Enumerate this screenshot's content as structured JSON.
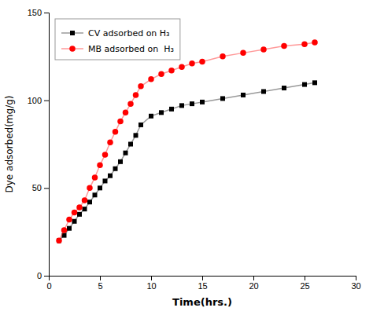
{
  "chart_data": {
    "type": "line",
    "x": [
      1,
      1.5,
      2,
      2.5,
      3,
      3.5,
      4,
      4.5,
      5,
      5.5,
      6,
      6.5,
      7,
      7.5,
      8,
      8.5,
      9,
      10,
      11,
      12,
      13,
      14,
      15,
      17,
      19,
      21,
      23,
      25,
      26
    ],
    "series": [
      {
        "name": "CV adsorbed on H₃",
        "color": "#000000",
        "marker": "square",
        "line_style": "solid",
        "values": [
          20,
          23,
          27,
          31,
          35,
          38,
          42,
          46,
          50,
          54,
          57,
          61,
          65,
          70,
          75,
          80,
          86,
          91,
          93,
          95,
          97,
          98,
          99,
          101,
          103,
          105,
          107,
          109,
          110
        ]
      },
      {
        "name": "MB adsorbed on  H₃",
        "color": "#ff0000",
        "marker": "circle",
        "line_style": "solid",
        "values": [
          20,
          26,
          32,
          36,
          39,
          43,
          50,
          56,
          63,
          69,
          76,
          82,
          88,
          93,
          98,
          103,
          108,
          112,
          115,
          117,
          119,
          121,
          122,
          125,
          127,
          129,
          131,
          132,
          133
        ]
      }
    ],
    "xlabel": "Time(hrs.)",
    "ylabel": "Dye adsorbed(mg/g)",
    "xlim": [
      0,
      30
    ],
    "ylim": [
      0,
      150
    ],
    "xticks": [
      0,
      5,
      10,
      15,
      20,
      25,
      30
    ],
    "yticks": [
      0,
      50,
      100,
      150
    ],
    "grid": false,
    "legend": "upper left"
  }
}
